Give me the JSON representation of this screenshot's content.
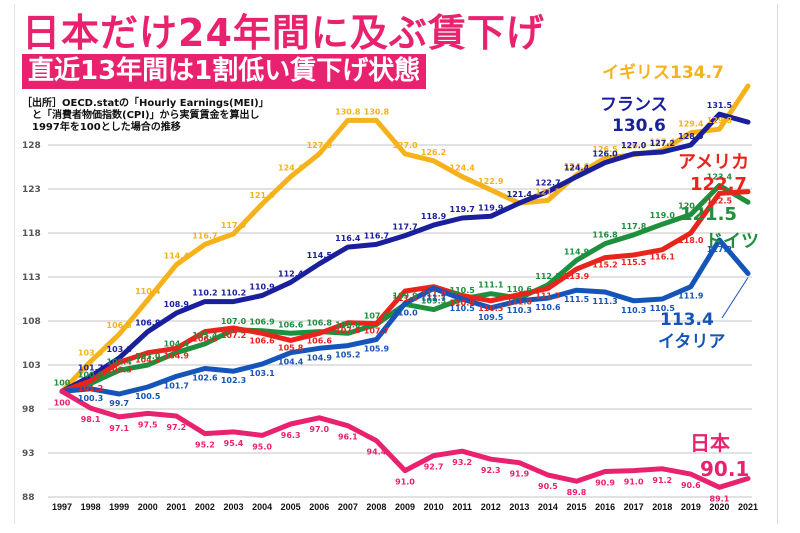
{
  "header": {
    "title": "日本だけ24年間に及ぶ賃下げ",
    "subtitle": "直近13年間は1割低い賃下げ状態",
    "source_lines": [
      "［出所］OECD.statの「Hourly Earnings(MEI)」",
      "　と「消費者物価指数(CPI)」から実質賃金を算出し",
      "　1997年を100とした場合の推移"
    ]
  },
  "chart_data": {
    "type": "line",
    "title": "日本だけ24年間に及ぶ賃下げ",
    "subtitle": "直近13年間は1割低い賃下げ状態",
    "xlabel": "",
    "ylabel": "",
    "x": [
      "1997",
      "1998",
      "1999",
      "2000",
      "2001",
      "2002",
      "2003",
      "2004",
      "2005",
      "2006",
      "2007",
      "2008",
      "2009",
      "2010",
      "2011",
      "2012",
      "2013",
      "2014",
      "2015",
      "2016",
      "2017",
      "2018",
      "2019",
      "2020",
      "2021"
    ],
    "yticks": [
      88,
      93,
      98,
      103,
      108,
      113,
      118,
      123,
      128
    ],
    "ylim": [
      88,
      136
    ],
    "grid": true,
    "legend": "inline end-labels",
    "series": [
      {
        "name": "イギリス",
        "end_label": "134.7",
        "color": "#f5b21b",
        "values": [
          100,
          103.4,
          106.5,
          110.4,
          114.4,
          116.7,
          117.9,
          121.3,
          124.4,
          127.0,
          130.8,
          130.8,
          127.0,
          126.2,
          124.4,
          122.9,
          121.4,
          121.7,
          124.6,
          126.5,
          126.9,
          127.4,
          129.4,
          129.8,
          134.7
        ]
      },
      {
        "name": "フランス",
        "end_label": "130.6",
        "color": "#1a1f9c",
        "values": [
          100,
          101.7,
          103.8,
          106.8,
          108.9,
          110.2,
          110.2,
          110.9,
          112.4,
          114.5,
          116.4,
          116.7,
          117.7,
          118.9,
          119.7,
          119.9,
          121.4,
          122.7,
          124.4,
          126.0,
          127.0,
          127.2,
          128.0,
          131.5,
          130.6
        ]
      },
      {
        "name": "アメリカ",
        "end_label": "122.7",
        "color": "#e8241c",
        "values": [
          100,
          101.2,
          103.3,
          104.4,
          104.9,
          106.8,
          107.2,
          106.6,
          105.8,
          106.6,
          107.8,
          107.7,
          111.4,
          111.9,
          110.9,
          110.3,
          111.0,
          111.7,
          113.9,
          115.2,
          115.5,
          116.1,
          118.0,
          122.5,
          122.7
        ]
      },
      {
        "name": "ドイツ",
        "end_label": "121.5",
        "color": "#1e8f3c",
        "values": [
          100,
          100.9,
          102.4,
          103.0,
          104.4,
          105.4,
          107.0,
          106.9,
          106.6,
          106.8,
          106.6,
          107.6,
          109.9,
          109.3,
          110.5,
          111.1,
          110.6,
          112.1,
          114.9,
          116.8,
          117.8,
          119.0,
          120.1,
          123.4,
          121.5
        ]
      },
      {
        "name": "イタリア",
        "end_label": "113.4",
        "color": "#1554b8",
        "values": [
          100,
          100.3,
          99.7,
          100.5,
          101.7,
          102.6,
          102.3,
          103.1,
          104.4,
          104.9,
          105.2,
          105.9,
          110.0,
          111.7,
          110.5,
          109.5,
          110.3,
          110.6,
          111.5,
          111.3,
          110.3,
          110.5,
          111.9,
          117.2,
          113.4
        ]
      },
      {
        "name": "日本",
        "end_label": "90.1",
        "color": "#e8226f",
        "values": [
          100,
          98.1,
          97.1,
          97.5,
          97.2,
          95.2,
          95.4,
          95.0,
          96.3,
          97.0,
          96.1,
          94.4,
          91.0,
          92.7,
          93.2,
          92.3,
          91.9,
          90.5,
          89.8,
          90.9,
          91.0,
          91.2,
          90.6,
          89.1,
          90.1
        ]
      }
    ]
  }
}
